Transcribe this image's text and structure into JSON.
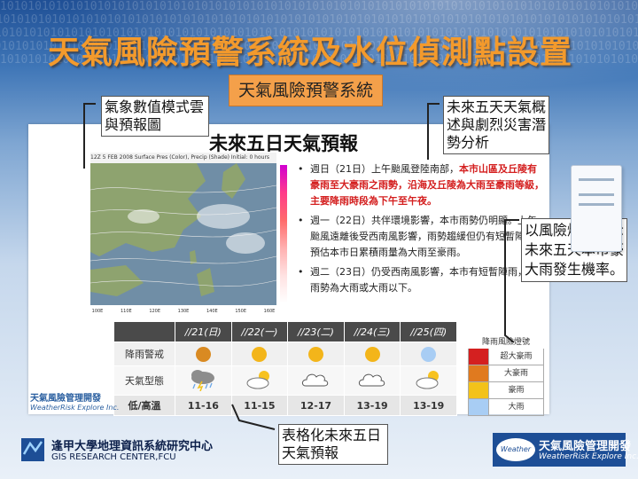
{
  "header": {
    "binary_pattern": "1010101010101010101010101010101010101010101010101010101010101010101010101010101010101010101010101010",
    "main_title": "天氣風險預警系統及水位偵測點設置",
    "subtitle": "天氣風險預警系統"
  },
  "slide": {
    "title": "未來五日天氣預報",
    "map_header": "12Z 5 FEB 2008    Surface Pres (Color), Precip (Shade)    Initial: 0 hours",
    "map_ticks": [
      "100E",
      "110E",
      "120E",
      "130E",
      "140E",
      "150E",
      "160E"
    ],
    "bullets": [
      {
        "segments": [
          {
            "text": "週日（21日）上午颱風登陸南部，",
            "red": false
          },
          {
            "text": "本市山區及丘陵有豪雨至大豪雨之雨勢，沿海及丘陵為大雨至豪雨等級，主要降雨時段為下午至午夜。",
            "red": true
          }
        ]
      },
      {
        "segments": [
          {
            "text": "週一（22日）共伴環境影響，本市雨勢仍明顯。上午颱風遠離後受西南風影響，雨勢趨緩但仍有短暫陣雨，預估本市日累積雨量為大雨至豪雨。",
            "red": false
          }
        ]
      },
      {
        "segments": [
          {
            "text": "週二（23日）仍受西南風影響，本市有短暫陣雨，且雨勢為大雨或大雨以下。",
            "red": false
          }
        ]
      }
    ],
    "table": {
      "headers": [
        "",
        "//21(日)",
        "//22(一)",
        "//23(二)",
        "//24(三)",
        "//25(四)"
      ],
      "rain_label": "降雨警戒",
      "weather_label": "天氣型態",
      "temp_label": "低/高溫",
      "rain_colors": [
        "#d98a22",
        "#f3b51a",
        "#f3b51a",
        "#f3b51a",
        "#a8cdf4"
      ],
      "weather_icons": [
        "thunder-rain-icon",
        "sun-cloud-icon",
        "cloud-icon",
        "cloud-icon",
        "sun-cloud-icon"
      ],
      "temps": [
        "11-16",
        "11-15",
        "12-17",
        "13-19",
        "13-19"
      ]
    },
    "legend": {
      "title": "降雨風險燈號",
      "items": [
        {
          "label": "超大豪雨",
          "color": "#d42020"
        },
        {
          "label": "大豪雨",
          "color": "#e07a1f"
        },
        {
          "label": "豪雨",
          "color": "#f3c21a"
        },
        {
          "label": "大雨",
          "color": "#a8cdf4"
        }
      ]
    },
    "logo_text": "天氣風險管理開發",
    "logo_sub": "WeatherRisk Explore Inc."
  },
  "callouts": {
    "top_left": "氣象數值模式雲與預報圖",
    "top_right": "未來五天天氣概述與劇烈災害潛勢分析",
    "right": "以風險燈號表示未來五天本市豪大雨發生機率。",
    "bottom": "表格化未來五日天氣預報"
  },
  "footer": {
    "left_cn": "逢甲大學地理資訊系統研究中心",
    "left_en": "GIS RESEARCH CENTER,FCU",
    "right_logo_word": "Weather",
    "right_cn": "天氣風險管理開發",
    "right_en": "WeatherRisk Explore Inc."
  },
  "colors": {
    "title_orange": "#f39a2c",
    "subtitle_bg": "#f4a04a",
    "table_label_bg": "#f6cda8",
    "brand_blue": "#1d4e96"
  }
}
